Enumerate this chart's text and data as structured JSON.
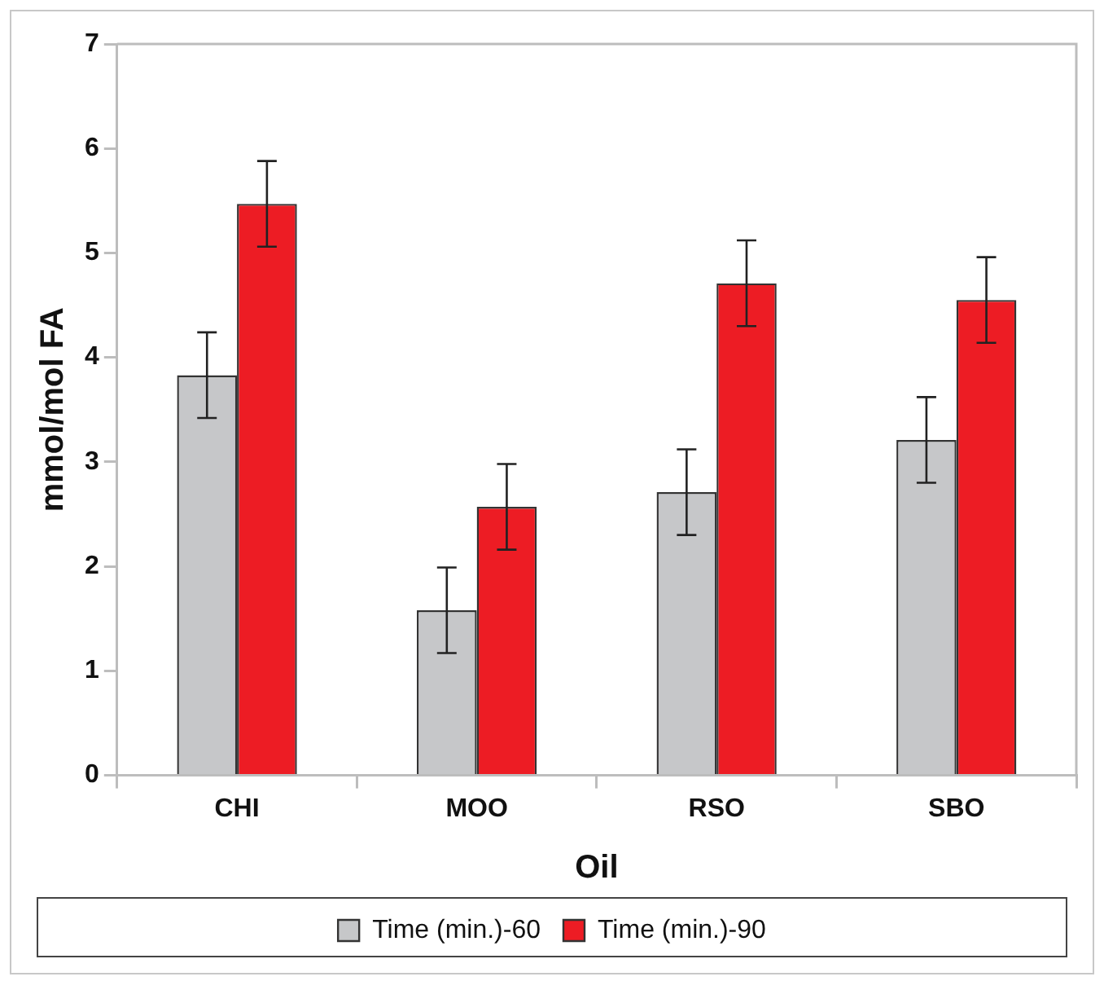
{
  "chart_data": {
    "type": "bar",
    "xlabel": "Oil",
    "ylabel": "mmol/mol FA",
    "categories": [
      "CHI",
      "MOO",
      "RSO",
      "SBO"
    ],
    "series": [
      {
        "name": "Time (min.)-60",
        "color": "#c6c7c9",
        "values": [
          3.83,
          1.58,
          2.71,
          3.21
        ],
        "errors": [
          0.41,
          0.41,
          0.41,
          0.41
        ]
      },
      {
        "name": "Time (min.)-90",
        "color": "#ed1c24",
        "values": [
          5.47,
          2.57,
          4.71,
          4.55
        ],
        "errors": [
          0.41,
          0.41,
          0.41,
          0.41
        ]
      }
    ],
    "ylim": [
      0,
      7
    ],
    "yticks": [
      0,
      1,
      2,
      3,
      4,
      5,
      6,
      7
    ],
    "grid": false,
    "legend": "bottom"
  }
}
